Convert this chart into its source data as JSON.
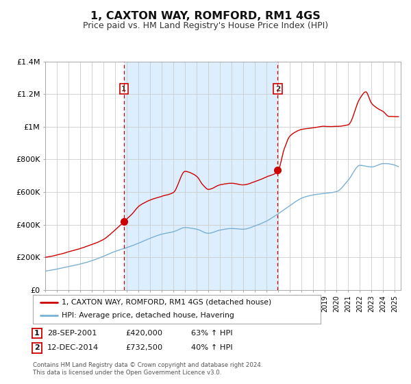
{
  "title": "1, CAXTON WAY, ROMFORD, RM1 4GS",
  "subtitle": "Price paid vs. HM Land Registry's House Price Index (HPI)",
  "title_fontsize": 11.5,
  "subtitle_fontsize": 9,
  "ylim": [
    0,
    1400000
  ],
  "xlim_start": 1995.0,
  "xlim_end": 2025.5,
  "background_color": "#ffffff",
  "plot_bg_color": "#ffffff",
  "shaded_region_color": "#ddeeff",
  "grid_color": "#cccccc",
  "red_line_color": "#cc0000",
  "blue_line_color": "#7ab0d4",
  "dashed_line_color": "#cc0000",
  "sale1_x": 2001.745,
  "sale1_y": 420000,
  "sale2_x": 2014.95,
  "sale2_y": 732500,
  "legend_line1": "1, CAXTON WAY, ROMFORD, RM1 4GS (detached house)",
  "legend_line2": "HPI: Average price, detached house, Havering",
  "sale1_date": "28-SEP-2001",
  "sale1_price": "£420,000",
  "sale1_pct": "63% ↑ HPI",
  "sale2_date": "12-DEC-2014",
  "sale2_price": "£732,500",
  "sale2_pct": "40% ↑ HPI",
  "footer1": "Contains HM Land Registry data © Crown copyright and database right 2024.",
  "footer2": "This data is licensed under the Open Government Licence v3.0.",
  "yticks": [
    0,
    200000,
    400000,
    600000,
    800000,
    1000000,
    1200000,
    1400000
  ],
  "ytick_labels": [
    "£0",
    "£200K",
    "£400K",
    "£600K",
    "£800K",
    "£1M",
    "£1.2M",
    "£1.4M"
  ],
  "hpi_points_x": [
    1995.0,
    1996.0,
    1997.0,
    1998.0,
    1999.0,
    2000.0,
    2001.0,
    2002.0,
    2003.0,
    2004.0,
    2005.0,
    2006.0,
    2007.0,
    2008.0,
    2009.0,
    2010.0,
    2011.0,
    2012.0,
    2013.0,
    2014.0,
    2015.0,
    2016.0,
    2017.0,
    2018.0,
    2019.0,
    2020.0,
    2021.0,
    2022.0,
    2023.0,
    2024.0,
    2025.0
  ],
  "hpi_points_y": [
    115000,
    128000,
    143000,
    158000,
    178000,
    205000,
    235000,
    258000,
    285000,
    315000,
    340000,
    355000,
    380000,
    370000,
    345000,
    365000,
    375000,
    370000,
    390000,
    420000,
    465000,
    515000,
    560000,
    580000,
    590000,
    600000,
    670000,
    760000,
    750000,
    770000,
    760000
  ],
  "prop_points_x": [
    1995.0,
    1996.0,
    1997.0,
    1998.0,
    1999.0,
    2000.0,
    2001.0,
    2001.745,
    2002.5,
    2003.0,
    2004.0,
    2005.0,
    2006.0,
    2007.0,
    2008.0,
    2008.5,
    2009.0,
    2010.0,
    2011.0,
    2012.0,
    2013.0,
    2014.0,
    2014.95,
    2015.5,
    2016.0,
    2017.0,
    2018.0,
    2019.0,
    2020.0,
    2021.0,
    2022.0,
    2022.5,
    2023.0,
    2023.5,
    2024.0,
    2024.5,
    2025.0
  ],
  "prop_points_y": [
    200000,
    215000,
    235000,
    255000,
    278000,
    310000,
    370000,
    420000,
    470000,
    510000,
    550000,
    575000,
    600000,
    730000,
    700000,
    650000,
    620000,
    650000,
    660000,
    650000,
    670000,
    700000,
    732500,
    870000,
    950000,
    990000,
    1000000,
    1010000,
    1010000,
    1020000,
    1180000,
    1220000,
    1150000,
    1120000,
    1100000,
    1070000,
    1070000
  ]
}
